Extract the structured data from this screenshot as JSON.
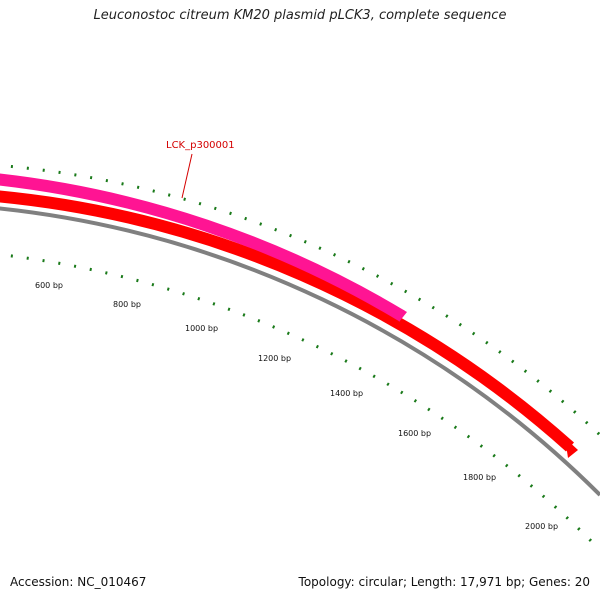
{
  "title": "Leuconostoc citreum KM20 plasmid pLCK3, complete sequence",
  "footer": {
    "accession": "Accession: NC_010467",
    "summary": "Topology: circular; Length: 17,971 bp; Genes: 20"
  },
  "scale_labels": [
    "600 bp",
    "800 bp",
    "1000 bp",
    "1200 bp",
    "1400 bp",
    "1600 bp",
    "1800 bp",
    "2000 bp"
  ],
  "genes": [
    {
      "label": "LCK_p300001",
      "color": "#ff1493",
      "strand": "outer"
    },
    {
      "label": "",
      "color": "#ff0000",
      "strand": "inner"
    }
  ],
  "colors": {
    "backbone": "#808080",
    "ticks": "#1a7a1a",
    "gene_label": "#d40000"
  }
}
